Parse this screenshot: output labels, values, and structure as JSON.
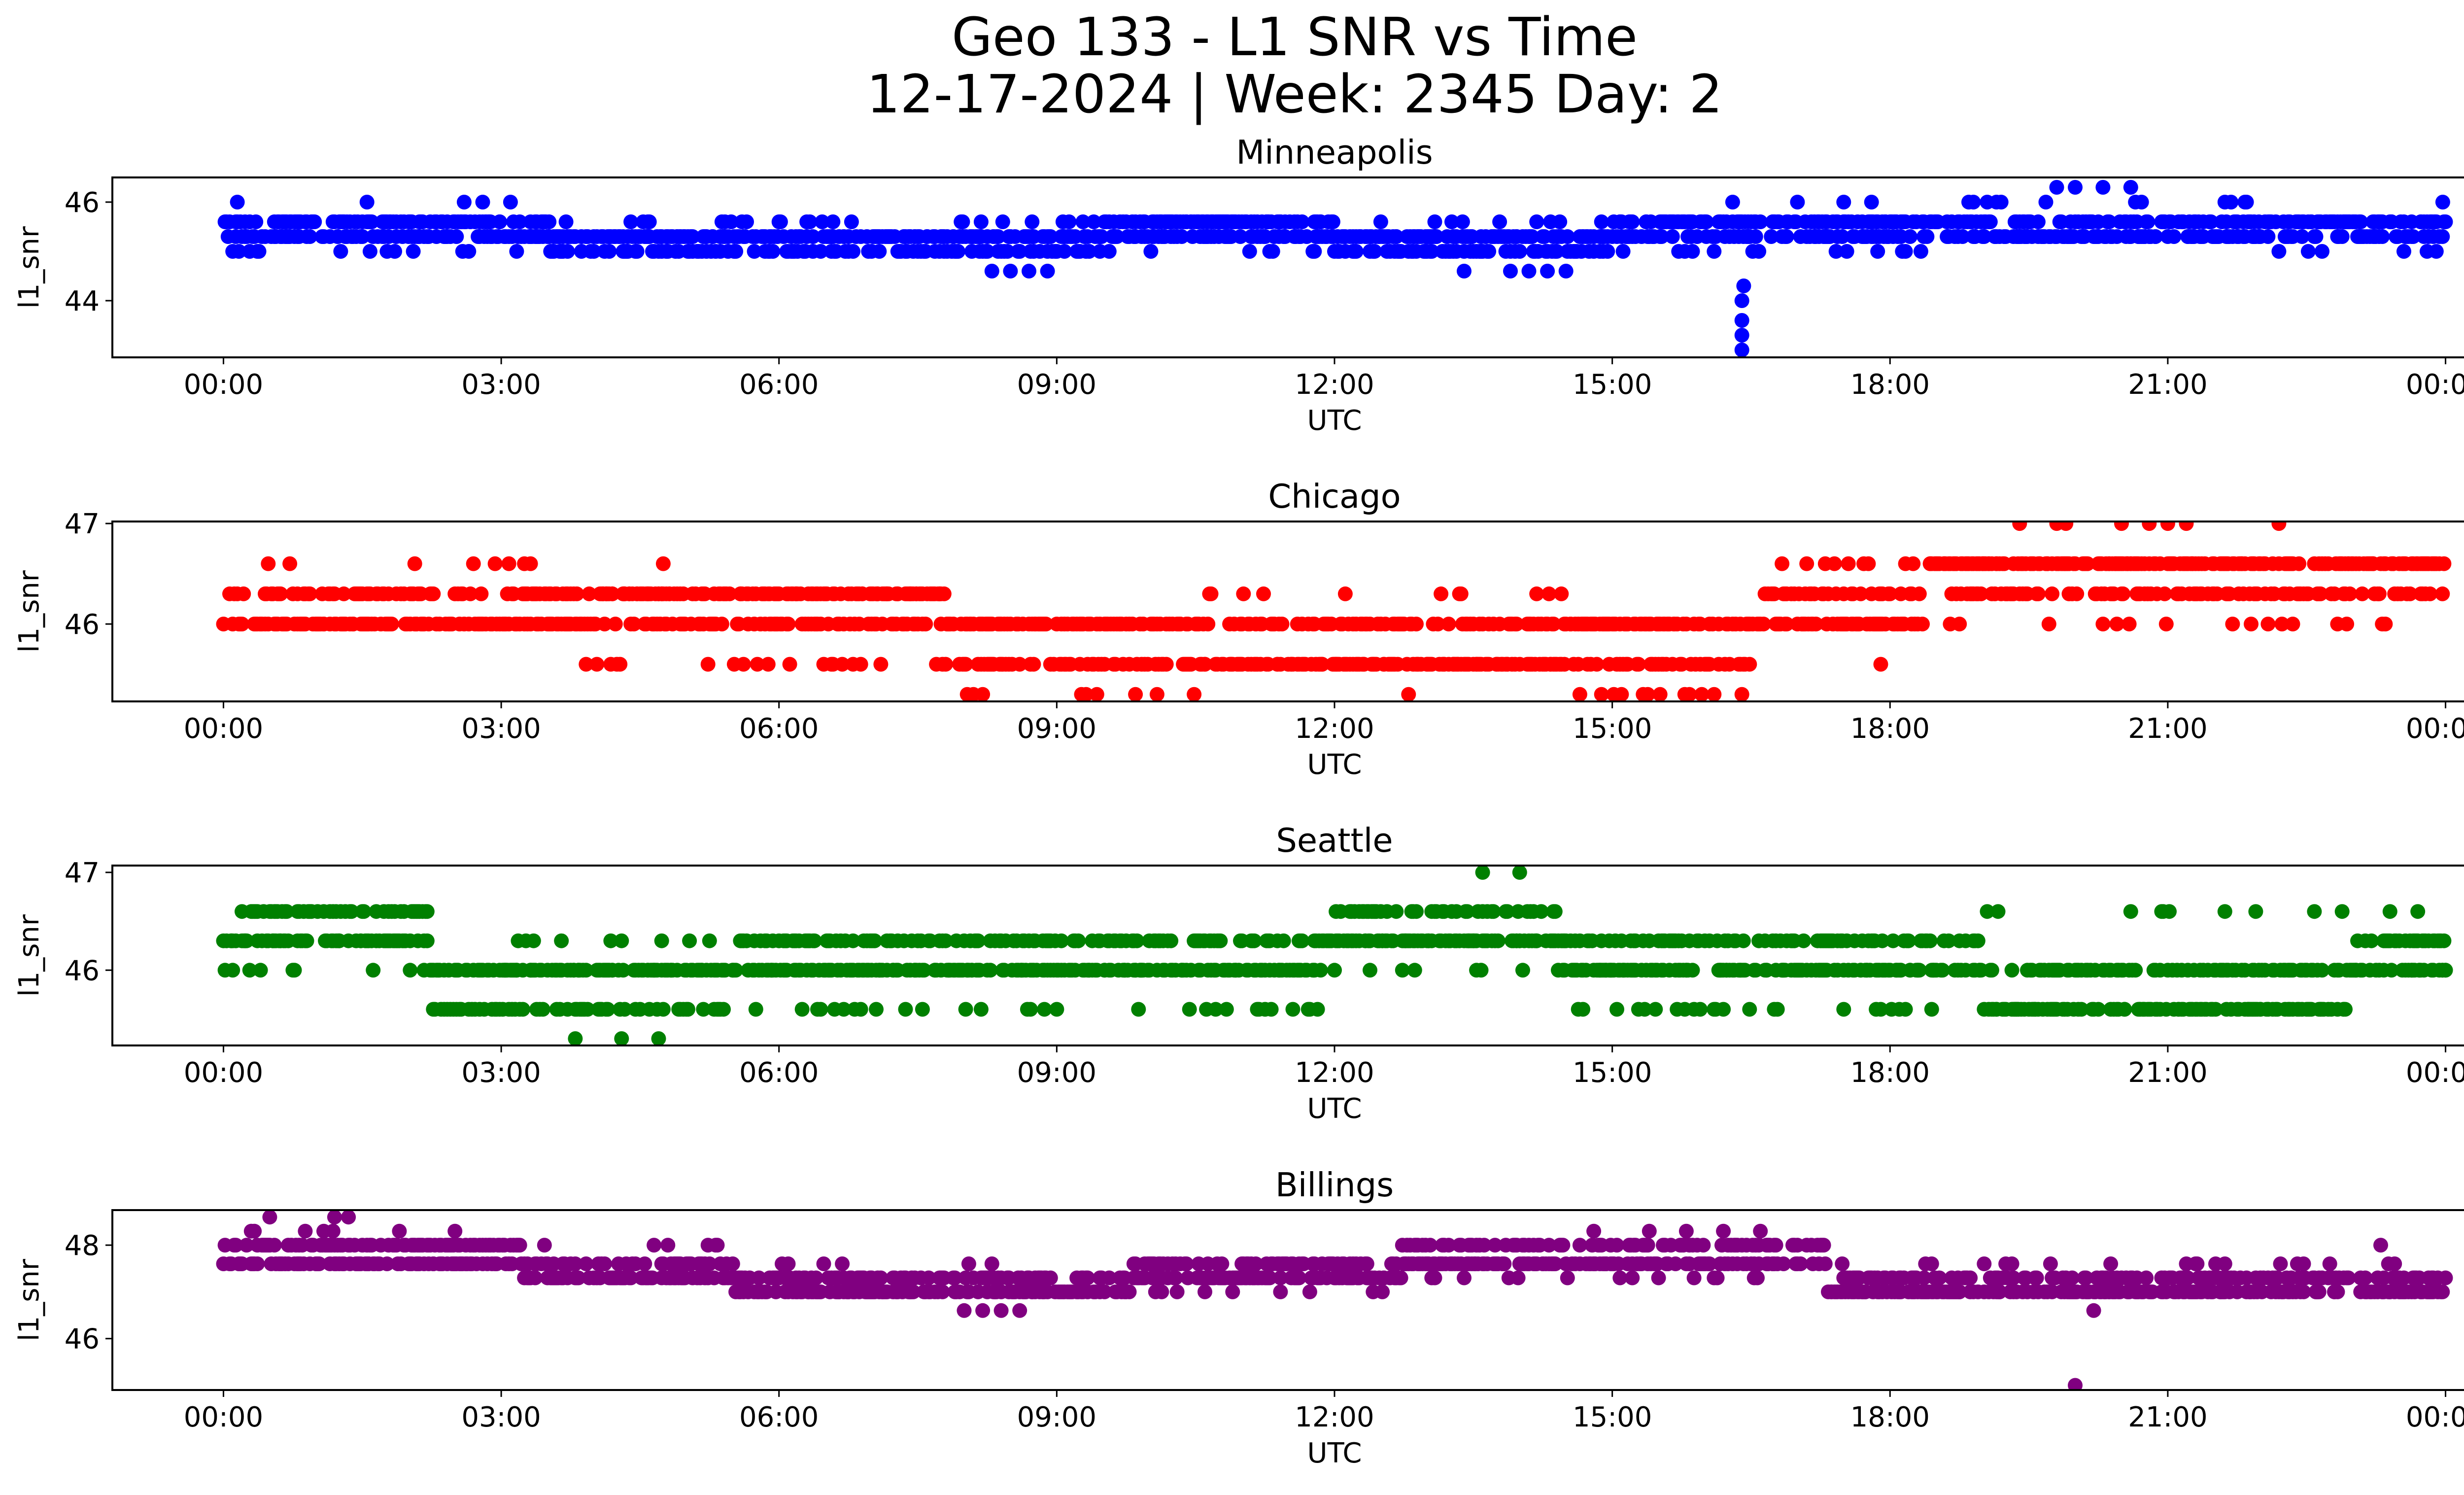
{
  "figure": {
    "title_line1": "Geo 133 - L1 SNR vs Time",
    "title_line2": "12-17-2024 | Week: 2345 Day: 2"
  },
  "chart_data": [
    {
      "type": "scatter",
      "title": "Minneapolis",
      "color": "#0000ff",
      "xlabel": "UTC",
      "ylabel": "l1_snr",
      "x_ticks": [
        "00:00",
        "03:00",
        "06:00",
        "09:00",
        "12:00",
        "15:00",
        "18:00",
        "21:00",
        "00:00"
      ],
      "x_range_hours": [
        -1.2,
        25.2
      ],
      "ylim": [
        42.85,
        46.5
      ],
      "y_ticks": [
        44,
        46
      ],
      "snr_levels": [
        43.0,
        43.3,
        43.6,
        44.0,
        44.3,
        44.6,
        45.0,
        45.3,
        45.6,
        46.0,
        46.3
      ],
      "base_segments": [
        {
          "from": 0.0,
          "to": 3.5,
          "levels": [
            45.3,
            45.6,
            45.0
          ]
        },
        {
          "from": 3.5,
          "to": 9.5,
          "levels": [
            45.0,
            45.3,
            45.6
          ]
        },
        {
          "from": 9.5,
          "to": 12.0,
          "levels": [
            45.3,
            45.6,
            45.0
          ]
        },
        {
          "from": 12.0,
          "to": 15.0,
          "levels": [
            45.0,
            45.3,
            45.6
          ]
        },
        {
          "from": 15.0,
          "to": 18.5,
          "levels": [
            45.3,
            45.6,
            45.0
          ]
        },
        {
          "from": 18.5,
          "to": 22.0,
          "levels": [
            45.6,
            45.3,
            46.0
          ]
        },
        {
          "from": 22.0,
          "to": 24.0,
          "levels": [
            45.3,
            45.6,
            45.0
          ]
        }
      ],
      "outliers": [
        [
          0.15,
          46.0
        ],
        [
          1.55,
          46.0
        ],
        [
          2.6,
          46.0
        ],
        [
          2.8,
          46.0
        ],
        [
          3.1,
          46.0
        ],
        [
          8.3,
          44.6
        ],
        [
          8.5,
          44.6
        ],
        [
          8.7,
          44.6
        ],
        [
          8.9,
          44.6
        ],
        [
          13.4,
          44.6
        ],
        [
          13.9,
          44.6
        ],
        [
          14.1,
          44.6
        ],
        [
          14.3,
          44.6
        ],
        [
          14.5,
          44.6
        ],
        [
          16.3,
          46.0
        ],
        [
          16.42,
          44.3
        ],
        [
          16.4,
          44.0
        ],
        [
          16.4,
          43.6
        ],
        [
          16.4,
          43.3
        ],
        [
          16.4,
          43.0
        ],
        [
          17.0,
          46.0
        ],
        [
          17.5,
          46.0
        ],
        [
          17.8,
          46.0
        ],
        [
          19.8,
          46.3
        ],
        [
          20.0,
          46.3
        ],
        [
          20.3,
          46.3
        ],
        [
          20.6,
          46.3
        ],
        [
          23.97,
          46.0
        ]
      ]
    },
    {
      "type": "scatter",
      "title": "Chicago",
      "color": "#ff0000",
      "xlabel": "UTC",
      "ylabel": "l1_snr",
      "x_ticks": [
        "00:00",
        "03:00",
        "06:00",
        "09:00",
        "12:00",
        "15:00",
        "18:00",
        "21:00",
        "00:00"
      ],
      "x_range_hours": [
        -1.2,
        25.2
      ],
      "ylim": [
        45.23,
        47.02
      ],
      "y_ticks": [
        46,
        47
      ],
      "snr_levels": [
        45.3,
        45.6,
        46.0,
        46.3,
        46.6,
        47.0
      ],
      "base_segments": [
        {
          "from": 0.0,
          "to": 3.5,
          "levels": [
            46.3,
            46.0,
            46.6
          ]
        },
        {
          "from": 3.5,
          "to": 7.8,
          "levels": [
            46.0,
            46.3,
            45.6
          ]
        },
        {
          "from": 7.8,
          "to": 10.5,
          "levels": [
            45.6,
            46.0,
            45.3
          ]
        },
        {
          "from": 10.5,
          "to": 14.5,
          "levels": [
            46.0,
            45.6,
            46.3
          ]
        },
        {
          "from": 14.5,
          "to": 16.6,
          "levels": [
            45.6,
            46.0,
            45.3
          ]
        },
        {
          "from": 16.6,
          "to": 18.3,
          "levels": [
            46.3,
            46.0,
            46.6
          ]
        },
        {
          "from": 18.3,
          "to": 24.0,
          "levels": [
            46.3,
            46.6,
            46.0
          ]
        }
      ],
      "outliers": [
        [
          3.25,
          46.6
        ],
        [
          4.75,
          46.6
        ],
        [
          12.8,
          45.3
        ],
        [
          17.9,
          45.6
        ],
        [
          19.4,
          47.0
        ],
        [
          19.8,
          47.0
        ],
        [
          19.9,
          47.0
        ],
        [
          20.5,
          47.0
        ],
        [
          20.8,
          47.0
        ],
        [
          21.0,
          47.0
        ],
        [
          21.2,
          47.0
        ],
        [
          22.2,
          47.0
        ]
      ]
    },
    {
      "type": "scatter",
      "title": "Seattle",
      "color": "#008000",
      "xlabel": "UTC",
      "ylabel": "l1_snr",
      "x_ticks": [
        "00:00",
        "03:00",
        "06:00",
        "09:00",
        "12:00",
        "15:00",
        "18:00",
        "21:00",
        "00:00"
      ],
      "x_range_hours": [
        -1.2,
        25.2
      ],
      "ylim": [
        45.23,
        47.07
      ],
      "y_ticks": [
        46,
        47
      ],
      "snr_levels": [
        45.3,
        45.6,
        46.0,
        46.3,
        46.6,
        47.0
      ],
      "base_segments": [
        {
          "from": 0.0,
          "to": 2.2,
          "levels": [
            46.6,
            46.3,
            46.0
          ]
        },
        {
          "from": 2.2,
          "to": 5.5,
          "levels": [
            45.6,
            46.0,
            46.3
          ]
        },
        {
          "from": 5.5,
          "to": 12.0,
          "levels": [
            46.3,
            46.0,
            45.6
          ]
        },
        {
          "from": 12.0,
          "to": 14.4,
          "levels": [
            46.6,
            46.3,
            46.0
          ]
        },
        {
          "from": 14.4,
          "to": 19.0,
          "levels": [
            46.3,
            46.0,
            45.6
          ]
        },
        {
          "from": 19.0,
          "to": 23.0,
          "levels": [
            46.0,
            45.6,
            46.6,
            46.3
          ]
        },
        {
          "from": 23.0,
          "to": 24.0,
          "levels": [
            46.3,
            46.0
          ]
        }
      ],
      "outliers": [
        [
          3.8,
          45.3
        ],
        [
          4.3,
          45.3
        ],
        [
          4.7,
          45.3
        ],
        [
          13.6,
          47.0
        ],
        [
          14.0,
          47.0
        ],
        [
          23.4,
          46.6
        ],
        [
          23.7,
          46.6
        ]
      ]
    },
    {
      "type": "scatter",
      "title": "Billings",
      "color": "#800080",
      "xlabel": "UTC",
      "ylabel": "l1_snr",
      "x_ticks": [
        "00:00",
        "03:00",
        "06:00",
        "09:00",
        "12:00",
        "15:00",
        "18:00",
        "21:00",
        "00:00"
      ],
      "x_range_hours": [
        -1.2,
        25.2
      ],
      "ylim": [
        44.9,
        48.75
      ],
      "y_ticks": [
        46,
        48
      ],
      "snr_levels": [
        45.0,
        46.6,
        47.0,
        47.3,
        47.6,
        48.0,
        48.3,
        48.6
      ],
      "base_segments": [
        {
          "from": 0.0,
          "to": 3.2,
          "levels": [
            48.0,
            47.6,
            48.3
          ]
        },
        {
          "from": 3.2,
          "to": 5.5,
          "levels": [
            47.6,
            47.3,
            48.0
          ]
        },
        {
          "from": 5.5,
          "to": 9.8,
          "levels": [
            47.3,
            47.0,
            47.6
          ]
        },
        {
          "from": 9.8,
          "to": 12.7,
          "levels": [
            47.6,
            47.3,
            47.0
          ]
        },
        {
          "from": 12.7,
          "to": 17.3,
          "levels": [
            48.0,
            47.6,
            47.3
          ]
        },
        {
          "from": 17.3,
          "to": 24.0,
          "levels": [
            47.3,
            47.0,
            47.6
          ]
        }
      ],
      "outliers": [
        [
          0.5,
          48.6
        ],
        [
          1.2,
          48.6
        ],
        [
          1.35,
          48.6
        ],
        [
          8.0,
          46.6
        ],
        [
          8.2,
          46.6
        ],
        [
          8.4,
          46.6
        ],
        [
          8.6,
          46.6
        ],
        [
          14.8,
          48.3
        ],
        [
          15.4,
          48.3
        ],
        [
          15.8,
          48.3
        ],
        [
          16.2,
          48.3
        ],
        [
          16.6,
          48.3
        ],
        [
          20.0,
          45.0
        ],
        [
          20.2,
          46.6
        ],
        [
          23.3,
          48.0
        ]
      ]
    }
  ]
}
